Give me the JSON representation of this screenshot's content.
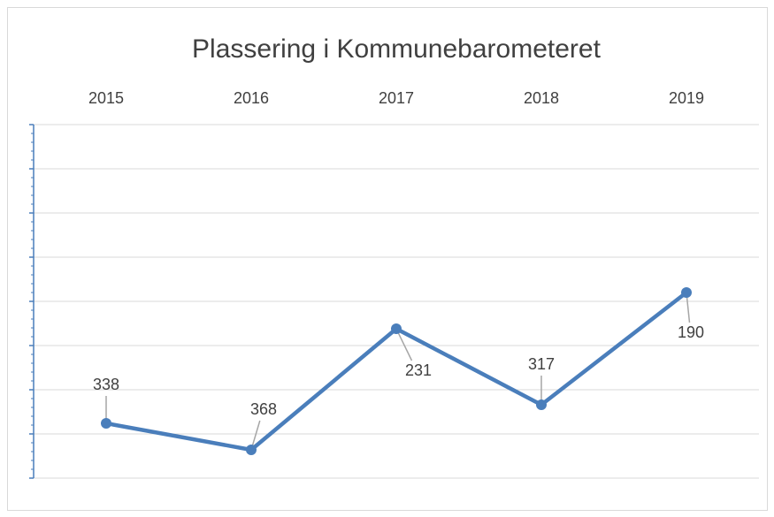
{
  "chart_data": {
    "type": "line",
    "title": "Plassering i Kommunebarometeret",
    "categories": [
      "2015",
      "2016",
      "2017",
      "2018",
      "2019"
    ],
    "values": [
      338,
      368,
      231,
      317,
      190
    ],
    "color": "#4a7ebb",
    "ylim": [
      0,
      400
    ],
    "yticks": [
      0,
      50,
      100,
      150,
      200,
      250,
      300,
      350,
      400
    ],
    "y_reversed": true,
    "grid": true
  }
}
